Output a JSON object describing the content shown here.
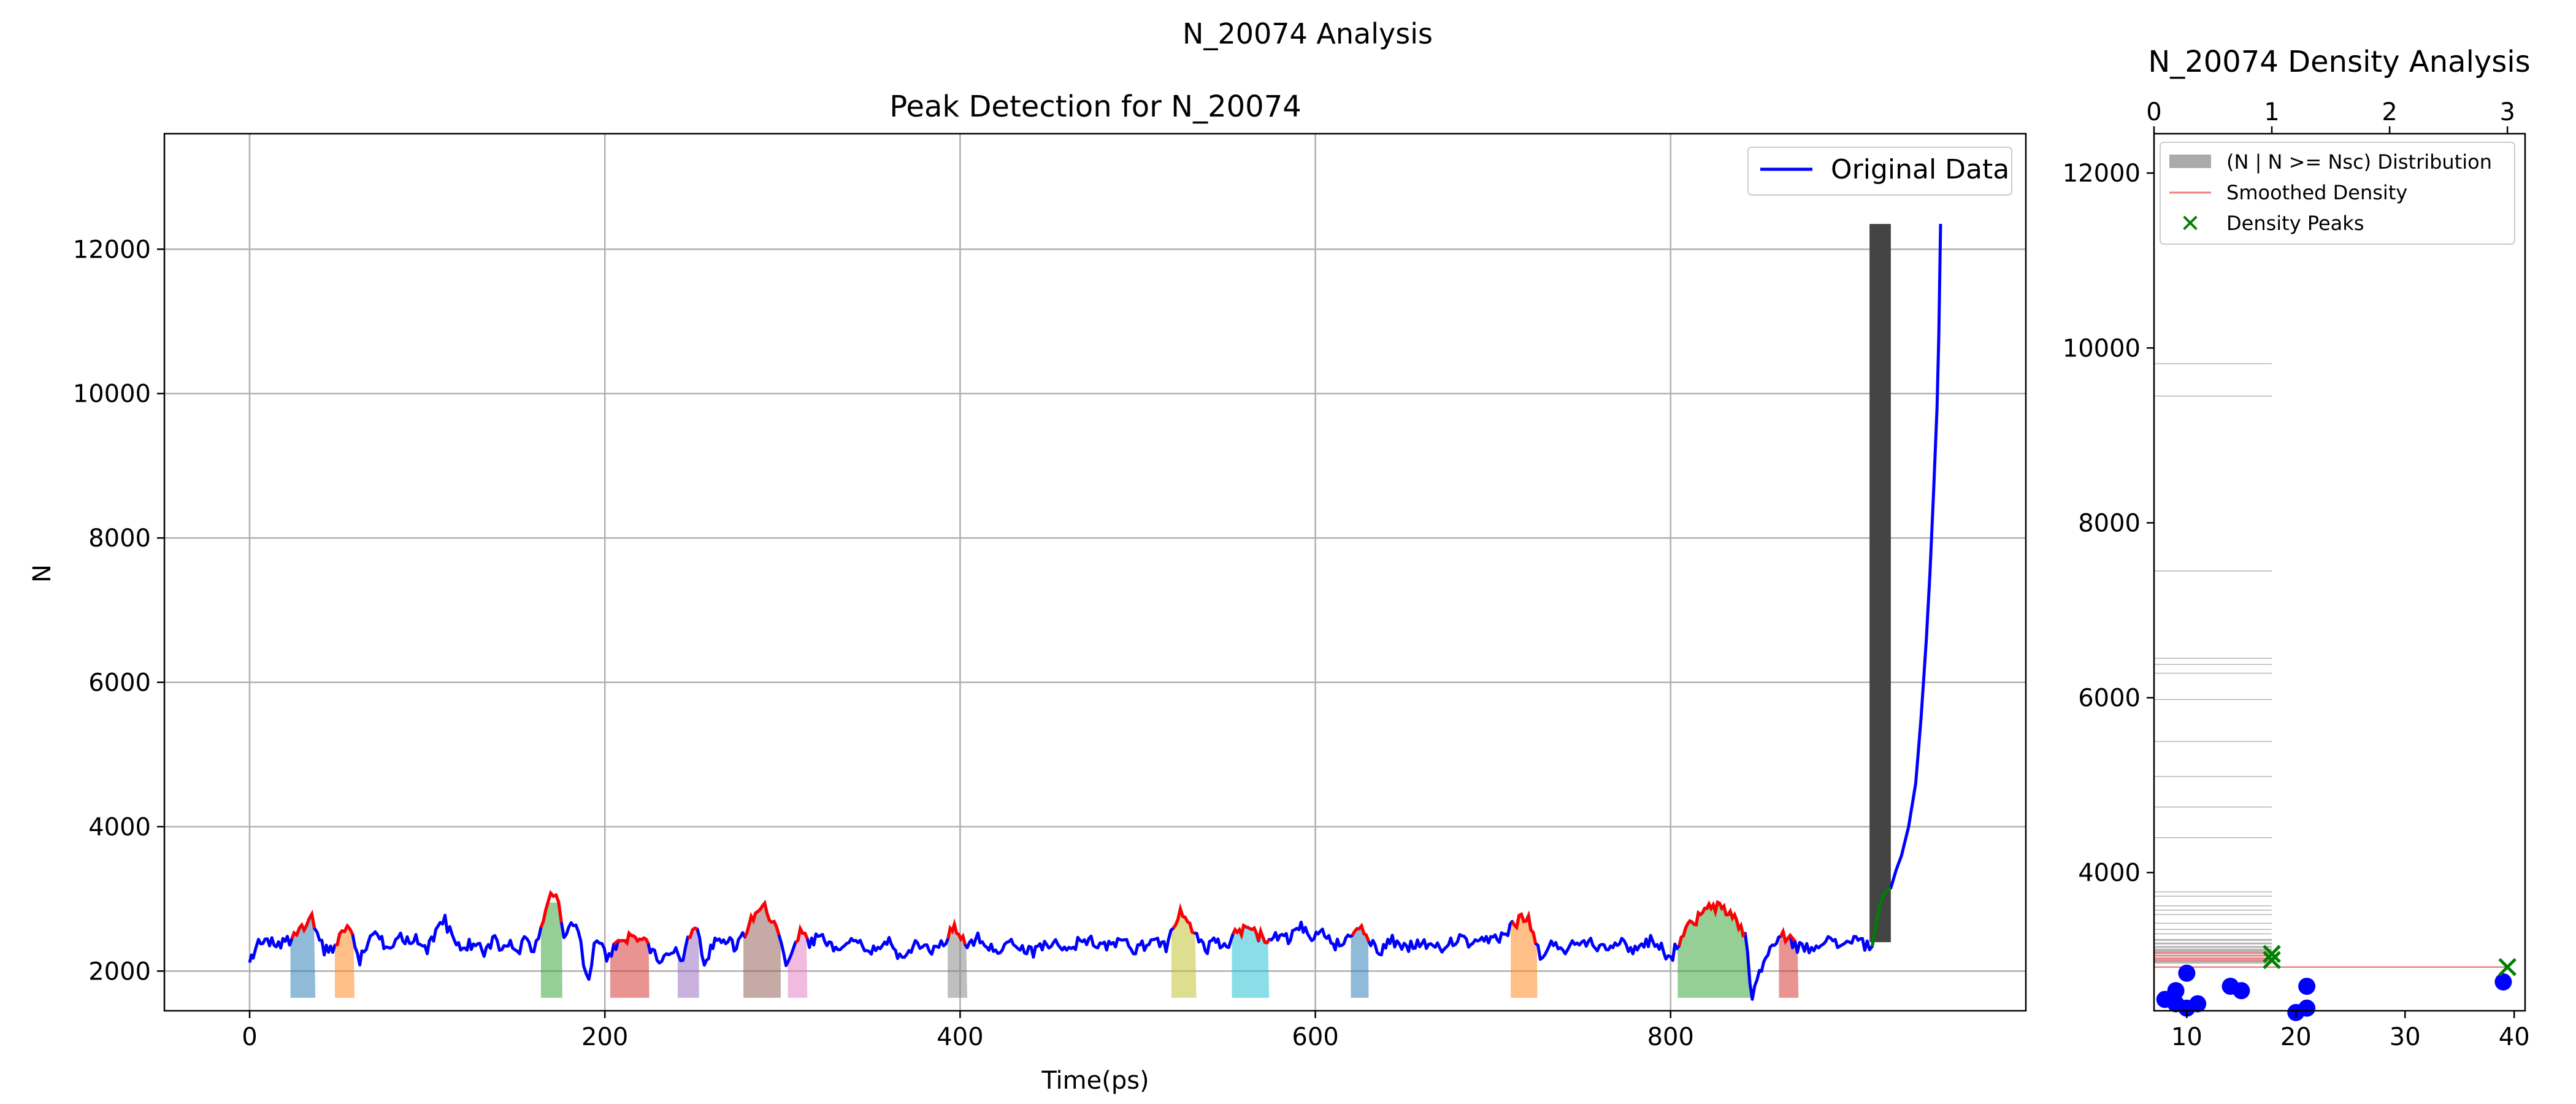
{
  "figure": {
    "suptitle": "N_20074 Analysis"
  },
  "chart_data": [
    {
      "type": "line",
      "title": "Peak Detection for N_20074",
      "xlabel": "Time(ps)",
      "ylabel": "N",
      "xlim": [
        -48,
        1000
      ],
      "ylim": [
        1450,
        13600
      ],
      "xticks": [
        0,
        200,
        400,
        600,
        800
      ],
      "yticks": [
        2000,
        4000,
        6000,
        8000,
        10000,
        12000
      ],
      "grid": true,
      "legend": {
        "position": "top-right",
        "entries": [
          "Original Data"
        ]
      },
      "series": [
        {
          "name": "Original Data",
          "color": "#0000ff",
          "anchors": [
            [
              0,
              2150
            ],
            [
              2,
              2150
            ],
            [
              5,
              2400
            ],
            [
              10,
              2380
            ],
            [
              20,
              2380
            ],
            [
              25,
              2450
            ],
            [
              28,
              2550
            ],
            [
              32,
              2700
            ],
            [
              35,
              2800
            ],
            [
              38,
              2500
            ],
            [
              42,
              2300
            ],
            [
              48,
              2350
            ],
            [
              52,
              2550
            ],
            [
              55,
              2600
            ],
            [
              58,
              2450
            ],
            [
              62,
              2150
            ],
            [
              68,
              2500
            ],
            [
              72,
              2450
            ],
            [
              78,
              2350
            ],
            [
              85,
              2500
            ],
            [
              90,
              2400
            ],
            [
              96,
              2450
            ],
            [
              100,
              2300
            ],
            [
              106,
              2550
            ],
            [
              110,
              2700
            ],
            [
              114,
              2450
            ],
            [
              120,
              2300
            ],
            [
              126,
              2400
            ],
            [
              132,
              2250
            ],
            [
              138,
              2450
            ],
            [
              142,
              2300
            ],
            [
              148,
              2400
            ],
            [
              152,
              2300
            ],
            [
              156,
              2450
            ],
            [
              160,
              2300
            ],
            [
              164,
              2600
            ],
            [
              168,
              2950
            ],
            [
              171,
              3100
            ],
            [
              174,
              2900
            ],
            [
              177,
              2500
            ],
            [
              181,
              2700
            ],
            [
              185,
              2500
            ],
            [
              188,
              2150
            ],
            [
              191,
              1800
            ],
            [
              194,
              2300
            ],
            [
              197,
              2450
            ],
            [
              201,
              2200
            ],
            [
              205,
              2300
            ],
            [
              210,
              2400
            ],
            [
              216,
              2500
            ],
            [
              222,
              2450
            ],
            [
              228,
              2250
            ],
            [
              232,
              2150
            ],
            [
              236,
              2300
            ],
            [
              240,
              2300
            ],
            [
              244,
              2150
            ],
            [
              248,
              2550
            ],
            [
              252,
              2600
            ],
            [
              256,
              2150
            ],
            [
              262,
              2400
            ],
            [
              268,
              2450
            ],
            [
              274,
              2300
            ],
            [
              280,
              2600
            ],
            [
              286,
              2850
            ],
            [
              290,
              2900
            ],
            [
              294,
              2700
            ],
            [
              298,
              2450
            ],
            [
              302,
              2150
            ],
            [
              306,
              2350
            ],
            [
              310,
              2550
            ],
            [
              314,
              2400
            ],
            [
              320,
              2450
            ],
            [
              330,
              2350
            ],
            [
              340,
              2450
            ],
            [
              350,
              2300
            ],
            [
              360,
              2400
            ],
            [
              366,
              2200
            ],
            [
              370,
              2150
            ],
            [
              376,
              2400
            ],
            [
              384,
              2300
            ],
            [
              392,
              2450
            ],
            [
              398,
              2600
            ],
            [
              404,
              2300
            ],
            [
              410,
              2450
            ],
            [
              420,
              2300
            ],
            [
              430,
              2400
            ],
            [
              440,
              2250
            ],
            [
              450,
              2400
            ],
            [
              460,
              2300
            ],
            [
              470,
              2450
            ],
            [
              480,
              2350
            ],
            [
              490,
              2400
            ],
            [
              500,
              2300
            ],
            [
              510,
              2450
            ],
            [
              516,
              2350
            ],
            [
              520,
              2600
            ],
            [
              524,
              2800
            ],
            [
              528,
              2750
            ],
            [
              532,
              2500
            ],
            [
              538,
              2300
            ],
            [
              544,
              2400
            ],
            [
              550,
              2300
            ],
            [
              556,
              2550
            ],
            [
              562,
              2600
            ],
            [
              568,
              2500
            ],
            [
              574,
              2400
            ],
            [
              580,
              2500
            ],
            [
              586,
              2450
            ],
            [
              592,
              2600
            ],
            [
              598,
              2400
            ],
            [
              604,
              2550
            ],
            [
              610,
              2350
            ],
            [
              616,
              2450
            ],
            [
              622,
              2550
            ],
            [
              626,
              2700
            ],
            [
              630,
              2400
            ],
            [
              636,
              2250
            ],
            [
              642,
              2450
            ],
            [
              650,
              2300
            ],
            [
              660,
              2400
            ],
            [
              670,
              2300
            ],
            [
              680,
              2450
            ],
            [
              690,
              2350
            ],
            [
              700,
              2450
            ],
            [
              706,
              2500
            ],
            [
              712,
              2650
            ],
            [
              716,
              2750
            ],
            [
              720,
              2700
            ],
            [
              724,
              2400
            ],
            [
              728,
              2150
            ],
            [
              734,
              2400
            ],
            [
              742,
              2300
            ],
            [
              750,
              2450
            ],
            [
              760,
              2350
            ],
            [
              770,
              2400
            ],
            [
              780,
              2300
            ],
            [
              790,
              2450
            ],
            [
              796,
              2300
            ],
            [
              800,
              2150
            ],
            [
              806,
              2500
            ],
            [
              812,
              2650
            ],
            [
              818,
              2800
            ],
            [
              824,
              2900
            ],
            [
              830,
              2850
            ],
            [
              836,
              2750
            ],
            [
              842,
              2500
            ],
            [
              846,
              1600
            ],
            [
              850,
              2000
            ],
            [
              856,
              2300
            ],
            [
              862,
              2450
            ],
            [
              866,
              2500
            ],
            [
              870,
              2350
            ],
            [
              878,
              2300
            ],
            [
              886,
              2450
            ],
            [
              894,
              2350
            ],
            [
              902,
              2450
            ],
            [
              908,
              2400
            ],
            [
              912,
              2300
            ],
            [
              915,
              2550
            ],
            [
              918,
              2950
            ],
            [
              921,
              3100
            ],
            [
              924,
              3150
            ],
            [
              927,
              3400
            ],
            [
              930,
              3600
            ],
            [
              934,
              4000
            ],
            [
              938,
              4600
            ],
            [
              941,
              5500
            ],
            [
              944,
              6600
            ],
            [
              946,
              7500
            ],
            [
              948,
              8600
            ],
            [
              950,
              9800
            ],
            [
              951,
              10800
            ],
            [
              952,
              12350
            ]
          ]
        }
      ],
      "detected_peaks": [
        [
          23,
          37
        ],
        [
          48,
          59
        ],
        [
          164,
          176
        ],
        [
          203,
          225
        ],
        [
          241,
          253
        ],
        [
          278,
          299
        ],
        [
          303,
          314
        ],
        [
          393,
          404
        ],
        [
          519,
          533
        ],
        [
          553,
          574
        ],
        [
          620,
          630
        ],
        [
          710,
          725
        ],
        [
          804,
          845
        ],
        [
          861,
          872
        ]
      ],
      "peak_fill_colors": [
        "#1f77b4",
        "#ff7f0e",
        "#2ca02c",
        "#d62728",
        "#9467bd",
        "#8c564b",
        "#e377c2",
        "#7f7f7f",
        "#bcbd22",
        "#17becf"
      ],
      "tall_bar": {
        "x": [
          912,
          924
        ],
        "y": [
          2400,
          12350
        ],
        "color": "#444444"
      }
    },
    {
      "type": "bar",
      "title": "N_20074 Density Analysis",
      "orientation": "horizontal",
      "xlim_top": [
        0,
        3.15
      ],
      "xticks_top": [
        0,
        1,
        2,
        3
      ],
      "xlim_bottom": [
        7,
        41
      ],
      "xticks_bottom": [
        10,
        20,
        30,
        40
      ],
      "ylim": [
        2420,
        12450
      ],
      "yticks": [
        4000,
        6000,
        8000,
        10000,
        12000
      ],
      "legend": {
        "position": "top-left",
        "entries": [
          "(N | N >= Nsc) Distribution",
          "Smoothed Density",
          "Density Peaks"
        ]
      },
      "histogram_bins": [
        9820,
        9450,
        7450,
        6450,
        6380,
        6280,
        5980,
        5500,
        5100,
        4750,
        4400,
        3780,
        3730,
        3620,
        3570,
        3520,
        3420,
        3350,
        3300,
        3230,
        3190,
        3150,
        3120,
        3100,
        3080,
        3050,
        3020,
        3000,
        2990,
        2970
      ],
      "density_peaks": [
        [
          1.0,
          3070
        ],
        [
          1.0,
          3000
        ],
        [
          3.0,
          2920
        ]
      ],
      "scatter_points": [
        [
          8,
          2550
        ],
        [
          9,
          2650
        ],
        [
          9,
          2500
        ],
        [
          10,
          2850
        ],
        [
          10,
          2450
        ],
        [
          11,
          2500
        ],
        [
          14,
          2700
        ],
        [
          15,
          2650
        ],
        [
          20,
          2400
        ],
        [
          21,
          2700
        ],
        [
          21,
          2450
        ],
        [
          39,
          2750
        ]
      ]
    }
  ]
}
